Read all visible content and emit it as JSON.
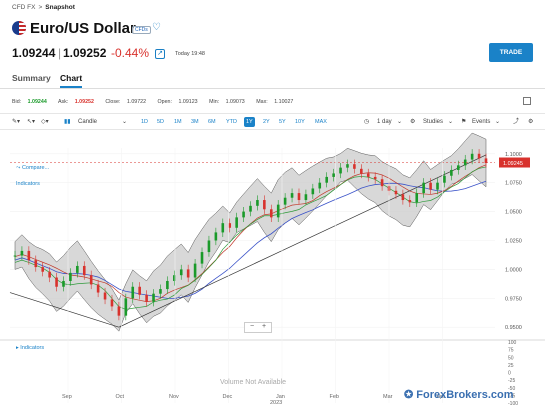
{
  "breadcrumb": {
    "root": "CFD FX",
    "separator": ">",
    "current": "Snapshot"
  },
  "header": {
    "title": "Euro/US Dollar",
    "tag": "CFDs",
    "bid": "1.09244",
    "separator": "|",
    "ask": "1.09252",
    "change": "-0.44%",
    "timestamp": "Today 19:48",
    "trade_label": "TRADE"
  },
  "tabs": [
    {
      "label": "Summary"
    },
    {
      "label": "Chart"
    }
  ],
  "stats": [
    {
      "label": "Bid:",
      "value": "1.09244"
    },
    {
      "label": "Ask:",
      "value": "1.09252"
    },
    {
      "label": "Close:",
      "value": "1.09722"
    },
    {
      "label": "Open:",
      "value": "1.09123"
    },
    {
      "label": "Min:",
      "value": "1.09073"
    },
    {
      "label": "Max:",
      "value": "1.10027"
    }
  ],
  "toolbar": {
    "chart_type": "Candle",
    "ranges": [
      "1D",
      "5D",
      "1M",
      "3M",
      "6M",
      "YTD",
      "1Y",
      "2Y",
      "5Y",
      "10Y",
      "MAX"
    ],
    "active_range": "1Y",
    "interval": "1 day",
    "studies": "Studies",
    "events": "Events"
  },
  "chart_links": {
    "compare": "Compare...",
    "indicators": "Indicators",
    "indicators_lower": "Indicators"
  },
  "volume_note": "Volume Not Available",
  "zoom": {
    "minus": "−",
    "plus": "+"
  },
  "watermark": "ForexBrokers.com",
  "colors": {
    "accent": "#1a82c8",
    "down": "#d8322d",
    "up": "#1a9a2a"
  },
  "chart_data": {
    "type": "line",
    "title": "",
    "ylim": [
      0.945,
      1.105
    ],
    "yticks": [
      "1.1000",
      "1.0750",
      "1.0500",
      "1.0250",
      "1.0000",
      "0.9750",
      "0.9500"
    ],
    "volume_ticks": [
      "100",
      "75",
      "50",
      "25",
      "0",
      "-25",
      "-50",
      "-75",
      "-100"
    ],
    "xticks": [
      "Sep",
      "Oct",
      "Nov",
      "Dec",
      "Jan",
      "Feb",
      "Mar",
      "Apr"
    ],
    "x_year": "2023",
    "last_price_label": "1.09245",
    "last_price": 1.09245,
    "series": [
      {
        "values": [
          1.012,
          1.016,
          1.008,
          1.002,
          0.998,
          0.993,
          0.985,
          0.99,
          0.997,
          1.003,
          0.995,
          0.987,
          0.98,
          0.974,
          0.968,
          0.96,
          0.975,
          0.985,
          0.978,
          0.972,
          0.979,
          0.983,
          0.99,
          0.995,
          1.0,
          0.993,
          1.005,
          1.015,
          1.025,
          1.032,
          1.04,
          1.036,
          1.045,
          1.05,
          1.055,
          1.06,
          1.052,
          1.045,
          1.056,
          1.062,
          1.066,
          1.06,
          1.065,
          1.07,
          1.075,
          1.08,
          1.083,
          1.088,
          1.091,
          1.087,
          1.083,
          1.08,
          1.078,
          1.072,
          1.068,
          1.065,
          1.06,
          1.058,
          1.066,
          1.075,
          1.069,
          1.075,
          1.081,
          1.086,
          1.09,
          1.095,
          1.1,
          1.096,
          1.092
        ]
      }
    ]
  }
}
